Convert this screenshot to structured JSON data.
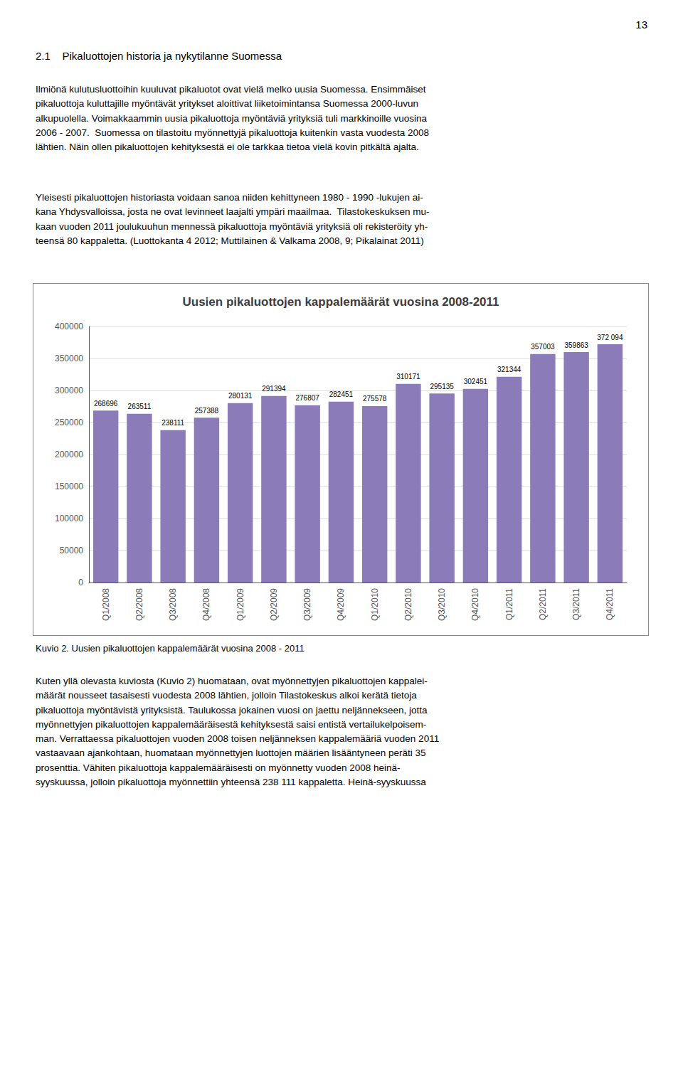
{
  "page_number": "13",
  "heading": "2.1    Pikaluottojen historia ja nykytilanne Suomessa",
  "para1": "Ilmiönä kulutusluottoihin kuuluvat pikaluotot ovat vielä melko uusia Suomessa. Ensimmäiset\npikaluottoja kuluttajille myöntävät yritykset aloittivat liiketoimintansa Suomessa 2000-luvun\nalkupuolella. Voimakkaammin uusia pikaluottoja myöntäviä yrityksiä tuli markkinoille vuosina\n2006 - 2007.  Suomessa on tilastoitu myönnettyjä pikaluottoja kuitenkin vasta vuodesta 2008\nlähtien. Näin ollen pikaluottojen kehityksestä ei ole tarkkaa tietoa vielä kovin pitkältä ajalta.",
  "para2": "Yleisesti pikaluottojen historiasta voidaan sanoa niiden kehittyneen 1980 - 1990 -lukujen ai-\nkana Yhdysvalloissa, josta ne ovat levinneet laajalti ympäri maailmaa.  Tilastokeskuksen mu-\nkaan vuoden 2011 joulukuuhun mennessä pikaluottoja myöntäviä yrityksiä oli rekisteröity yh-\nteensä 80 kappaletta. (Luottokanta 4 2012; Muttilainen & Valkama 2008, 9; Pikalainat 2011)",
  "caption": "Kuvio 2. Uusien pikaluottojen kappalemäärät vuosina 2008 - 2011",
  "para3": "Kuten yllä olevasta kuviosta (Kuvio 2) huomataan, ovat myönnettyjen pikaluottojen kappalei-\nmäärät nousseet tasaisesti vuodesta 2008 lähtien, jolloin Tilastokeskus alkoi kerätä tietoja\npikaluottoja myöntävistä yrityksistä. Taulukossa jokainen vuosi on jaettu neljännekseen, jotta\nmyönnettyjen pikaluottojen kappalemääräisestä kehityksestä saisi entistä vertailukelpoisem-\nman. Verrattaessa pikaluottojen vuoden 2008 toisen neljänneksen kappalemääriä vuoden 2011\nvastaavaan ajankohtaan, huomataan myönnettyjen luottojen määrien lisääntyneen peräti 35\nprosenttia. Vähiten pikaluottoja kappalemääräisesti on myönnetty vuoden 2008 heinä-\nsyyskuussa, jolloin pikaluottoja myönnettiin yhteensä 238 111 kappaletta. Heinä-syyskuussa",
  "chart_data": {
    "type": "bar",
    "title": "Uusien pikaluottojen kappalemäärät vuosina 2008-2011",
    "categories": [
      "Q1/2008",
      "Q2/2008",
      "Q3/2008",
      "Q4/2008",
      "Q1/2009",
      "Q2/2009",
      "Q3/2009",
      "Q4/2009",
      "Q1/2010",
      "Q2/2010",
      "Q3/2010",
      "Q4/2010",
      "Q1/2011",
      "Q2/2011",
      "Q3/2011",
      "Q4/2011"
    ],
    "values": [
      268696,
      263511,
      238111,
      257388,
      280131,
      291394,
      276807,
      282451,
      275578,
      310171,
      295135,
      302451,
      321344,
      357003,
      359863,
      372094
    ],
    "value_labels": [
      "268696",
      "263511",
      "238111",
      "257388",
      "280131",
      "291394",
      "276807",
      "282451",
      "275578",
      "310171",
      "295135",
      "302451",
      "321344",
      "357003",
      "359863",
      "372 094"
    ],
    "data_labels": true,
    "color": "#8B7BB8",
    "ylim": [
      0,
      400000
    ],
    "yticks": [
      0,
      50000,
      100000,
      150000,
      200000,
      250000,
      300000,
      350000,
      400000
    ],
    "grid": true
  }
}
